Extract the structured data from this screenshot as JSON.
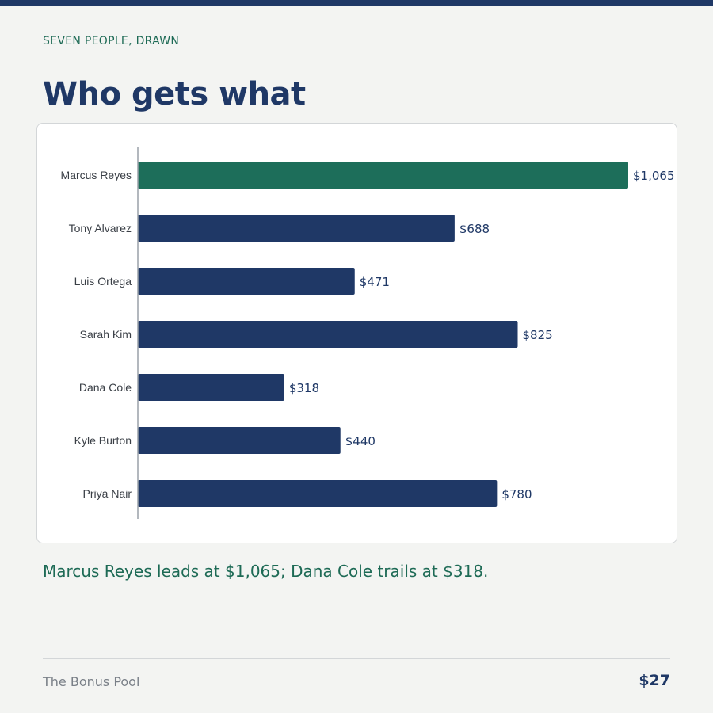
{
  "header": {
    "eyebrow": "SEVEN PEOPLE, DRAWN",
    "title": "Who gets what"
  },
  "caption": "Marcus Reyes leads at $1,065; Dana Cole trails at $318.",
  "footer": {
    "left": "The Bonus Pool",
    "right": "$27"
  },
  "colors": {
    "highlight": "#1d6e5a",
    "bar": "#1f3866",
    "axis": "#9aa1a8",
    "label": "#3a3f46",
    "value": "#1f3866"
  },
  "chart_data": {
    "type": "bar",
    "orientation": "horizontal",
    "title": "",
    "xlabel": "",
    "ylabel": "",
    "xlim": [
      0,
      1065
    ],
    "grid": false,
    "categories": [
      "Marcus Reyes",
      "Tony Alvarez",
      "Luis Ortega",
      "Sarah Kim",
      "Dana Cole",
      "Kyle Burton",
      "Priya Nair"
    ],
    "values": [
      1065,
      688,
      471,
      825,
      318,
      440,
      780
    ],
    "value_labels": [
      "$1,065",
      "$688",
      "$471",
      "$825",
      "$318",
      "$440",
      "$780"
    ],
    "highlight_index": 0
  }
}
